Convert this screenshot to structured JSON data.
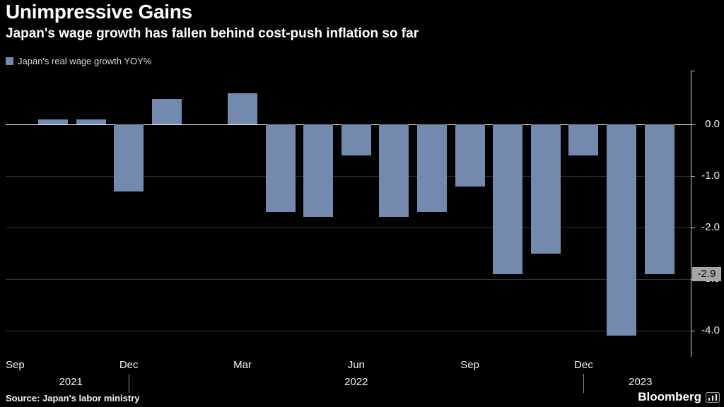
{
  "chart_data": {
    "type": "bar",
    "title": "Unimpressive Gains",
    "subtitle": "Japan's wage growth has fallen behind cost-push inflation so far",
    "series_name": "Japan's real wage growth YOY%",
    "unit": "%",
    "bar_color": "#7389ae",
    "background_color": "#000000",
    "grid": true,
    "legend_position": "top-left",
    "y_axis_position": "right",
    "ylim": [
      -4.5,
      1.05
    ],
    "y_ticks": [
      0,
      -1,
      -2,
      -3,
      -4
    ],
    "y_tick_labels": [
      "0.0",
      "-1.0",
      "-2.0",
      "-3.0",
      "-4.0"
    ],
    "last_value": -2.9,
    "last_value_label": "-2.9",
    "months": [
      {
        "month": "Sep 2021",
        "value": null
      },
      {
        "month": "Oct 2021",
        "value": 0.1
      },
      {
        "month": "Nov 2021",
        "value": 0.1
      },
      {
        "month": "Dec 2021",
        "value": -1.3
      },
      {
        "month": "Jan 2022",
        "value": 0.5
      },
      {
        "month": "Feb 2022",
        "value": 0.0
      },
      {
        "month": "Mar 2022",
        "value": 0.6
      },
      {
        "month": "Apr 2022",
        "value": -1.7
      },
      {
        "month": "May 2022",
        "value": -1.8
      },
      {
        "month": "Jun 2022",
        "value": -0.6
      },
      {
        "month": "Jul 2022",
        "value": -1.8
      },
      {
        "month": "Aug 2022",
        "value": -1.7
      },
      {
        "month": "Sep 2022",
        "value": -1.2
      },
      {
        "month": "Oct 2022",
        "value": -2.9
      },
      {
        "month": "Nov 2022",
        "value": -2.5
      },
      {
        "month": "Dec 2022",
        "value": -0.6
      },
      {
        "month": "Jan 2023",
        "value": -4.1
      },
      {
        "month": "Feb 2023",
        "value": -2.9
      }
    ],
    "x_ticks": [
      {
        "index": 0,
        "label": "Sep"
      },
      {
        "index": 3,
        "label": "Dec"
      },
      {
        "index": 6,
        "label": "Mar"
      },
      {
        "index": 9,
        "label": "Jun"
      },
      {
        "index": 12,
        "label": "Sep"
      },
      {
        "index": 15,
        "label": "Dec"
      }
    ],
    "year_labels": [
      {
        "index": 1.47,
        "label": "2021"
      },
      {
        "index": 9.0,
        "label": "2022"
      },
      {
        "index": 16.5,
        "label": "2023"
      }
    ],
    "year_dividers": [
      3,
      15
    ]
  },
  "footer": {
    "source": "Source: Japan's labor ministry",
    "brand": "Bloomberg"
  }
}
